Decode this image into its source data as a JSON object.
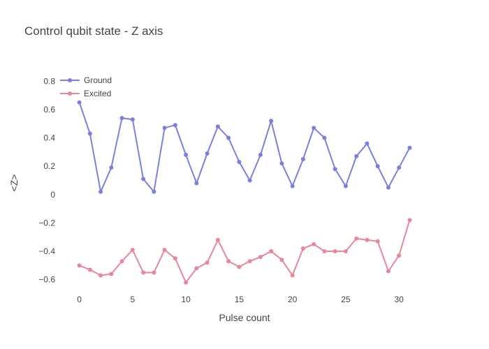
{
  "chart_data": {
    "type": "line",
    "title": "Control qubit state - Z axis",
    "xlabel": "Pulse count",
    "ylabel": "<Z>",
    "xlim": [
      -2.2,
      33.2
    ],
    "ylim": [
      -0.72,
      0.88
    ],
    "xticks": [
      0,
      5,
      10,
      15,
      20,
      25,
      30
    ],
    "yticks": [
      -0.6,
      -0.4,
      -0.2,
      0,
      0.2,
      0.4,
      0.6,
      0.8
    ],
    "ytick_labels": [
      "−0.6",
      "−0.4",
      "−0.2",
      "0",
      "0.2",
      "0.4",
      "0.6",
      "0.8"
    ],
    "grid": false,
    "legend_position": "top-left",
    "x": [
      0,
      1,
      2,
      3,
      4,
      5,
      6,
      7,
      8,
      9,
      10,
      11,
      12,
      13,
      14,
      15,
      16,
      17,
      18,
      19,
      20,
      21,
      22,
      23,
      24,
      25,
      26,
      27,
      28,
      29,
      30,
      31
    ],
    "series": [
      {
        "name": "Ground",
        "color": "#7b7fe0",
        "values": [
          0.65,
          0.43,
          0.02,
          0.19,
          0.54,
          0.53,
          0.11,
          0.02,
          0.47,
          0.49,
          0.28,
          0.08,
          0.29,
          0.48,
          0.4,
          0.23,
          0.1,
          0.28,
          0.52,
          0.22,
          0.06,
          0.25,
          0.47,
          0.4,
          0.18,
          0.06,
          0.27,
          0.36,
          0.2,
          0.05,
          0.19,
          0.33
        ]
      },
      {
        "name": "Excited",
        "color": "#e8869b",
        "values": [
          -0.5,
          -0.53,
          -0.57,
          -0.56,
          -0.47,
          -0.39,
          -0.55,
          -0.55,
          -0.39,
          -0.45,
          -0.62,
          -0.52,
          -0.48,
          -0.32,
          -0.47,
          -0.51,
          -0.47,
          -0.44,
          -0.4,
          -0.46,
          -0.57,
          -0.38,
          -0.35,
          -0.4,
          -0.4,
          -0.4,
          -0.31,
          -0.32,
          -0.33,
          -0.54,
          -0.43,
          -0.18
        ]
      }
    ]
  }
}
